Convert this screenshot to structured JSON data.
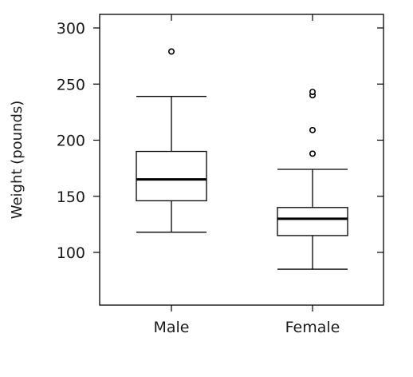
{
  "chart_data": {
    "type": "boxplot",
    "title": "",
    "xlabel": "",
    "ylabel": "Weight (pounds)",
    "ylim": [
      50,
      310
    ],
    "yticks": [
      100,
      150,
      200,
      250,
      300
    ],
    "grid": false,
    "categories": [
      "Male",
      "Female"
    ],
    "boxes": [
      {
        "category": "Male",
        "whisker_low": 118,
        "q1": 146,
        "median": 165,
        "q3": 190,
        "whisker_high": 239,
        "outliers": [
          279
        ]
      },
      {
        "category": "Female",
        "whisker_low": 85,
        "q1": 115,
        "median": 130,
        "q3": 140,
        "whisker_high": 174,
        "outliers": [
          188,
          209,
          240,
          243
        ]
      }
    ]
  }
}
